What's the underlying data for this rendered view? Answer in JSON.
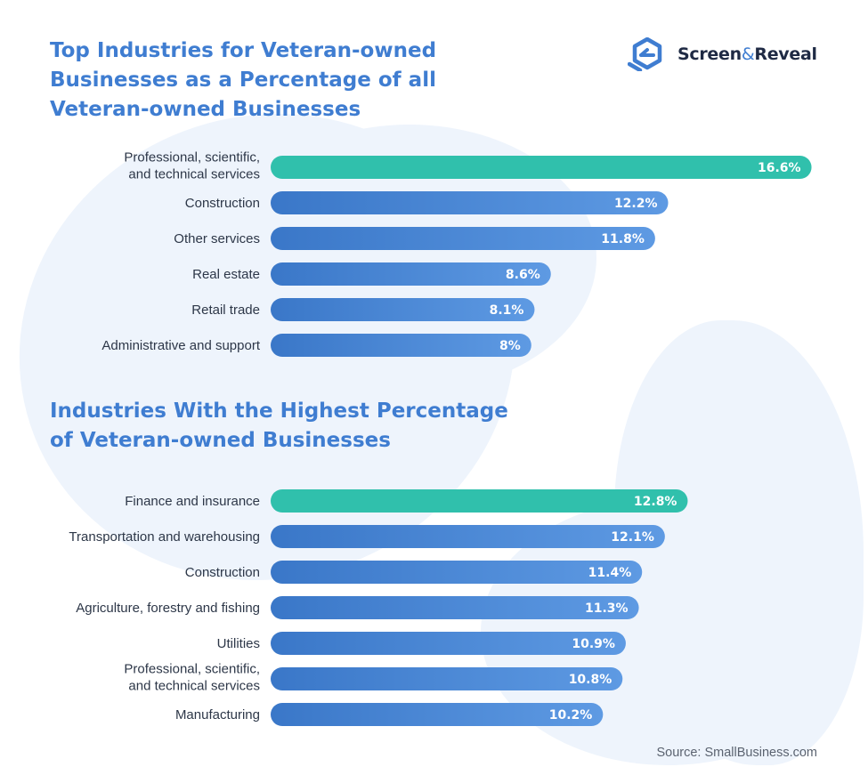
{
  "logo": {
    "name_part1": "Screen",
    "ampersand": "&",
    "name_part2": "Reveal",
    "icon": "screen-and-reveal-logo-icon"
  },
  "source": "Source: SmallBusiness.com",
  "colors": {
    "highlight_bar": "#30c0ac",
    "bar_gradient_start": "#3a77c8",
    "bar_gradient_end": "#5e9ae3",
    "label_text": "#2d3748",
    "title_text": "#3f7dd1"
  },
  "chart_data": [
    {
      "type": "bar",
      "orientation": "horizontal",
      "title": "Top Industries for Veteran-owned Businesses as a Percentage of all Veteran-owned Businesses",
      "unit": "%",
      "highlight_index": 0,
      "categories": [
        "Professional, scientific,\nand technical services",
        "Construction",
        "Other services",
        "Real estate",
        "Retail trade",
        "Administrative and support"
      ],
      "values": [
        16.6,
        12.2,
        11.8,
        8.6,
        8.1,
        8
      ],
      "value_labels": [
        "16.6%",
        "12.2%",
        "11.8%",
        "8.6%",
        "8.1%",
        "8%"
      ]
    },
    {
      "type": "bar",
      "orientation": "horizontal",
      "title": "Industries With the Highest Percentage of Veteran-owned Businesses",
      "unit": "%",
      "highlight_index": 0,
      "categories": [
        "Finance and insurance",
        "Transportation and warehousing",
        "Construction",
        "Agriculture, forestry and fishing",
        "Utilities",
        "Professional, scientific,\nand technical services",
        "Manufacturing"
      ],
      "values": [
        12.8,
        12.1,
        11.4,
        11.3,
        10.9,
        10.8,
        10.2
      ],
      "value_labels": [
        "12.8%",
        "12.1%",
        "11.4%",
        "11.3%",
        "10.9%",
        "10.8%",
        "10.2%"
      ]
    }
  ]
}
